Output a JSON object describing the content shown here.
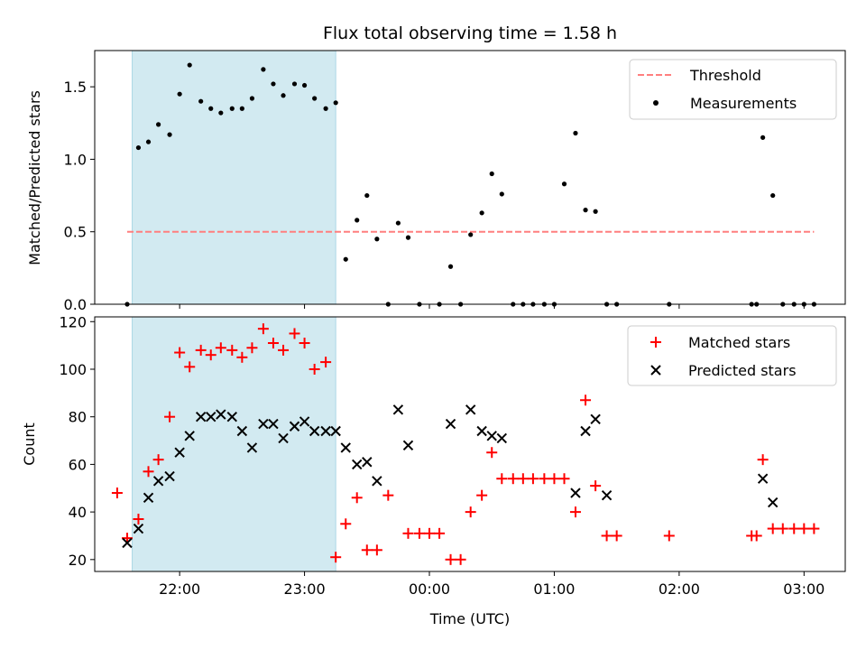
{
  "chart_data": {
    "title": "Flux total observing time = 1.58 h",
    "xlabel": "Time (UTC)",
    "x_ticks": [
      "22:00",
      "23:00",
      "00:00",
      "01:00",
      "02:00",
      "03:00"
    ],
    "x_tick_hours": [
      22,
      23,
      24,
      25,
      26,
      27
    ],
    "xlim_hours": [
      21.32,
      27.33
    ],
    "shaded_span_hours": [
      21.62,
      23.25
    ],
    "colors": {
      "shade": "#add8e6",
      "threshold": "#ff7f7f",
      "measurements": "#000000",
      "matched": "#ff0000",
      "predicted": "#000000"
    },
    "panels": [
      {
        "type": "scatter",
        "ylabel": "Matched/Predicted stars",
        "ylim": [
          0,
          1.75
        ],
        "y_ticks": [
          "0.0",
          "0.5",
          "1.0",
          "1.5"
        ],
        "y_tick_values": [
          0,
          0.5,
          1.0,
          1.5
        ],
        "legend": {
          "position": "upper right",
          "entries": [
            "Threshold",
            "Measurements"
          ]
        },
        "series": [
          {
            "name": "Threshold",
            "kind": "line",
            "style": "dashed",
            "x": [
              21.58,
              27.08
            ],
            "y": [
              0.5,
              0.5
            ]
          },
          {
            "name": "Measurements",
            "kind": "dots",
            "x": [
              21.58,
              21.67,
              21.75,
              21.83,
              21.92,
              22.0,
              22.08,
              22.17,
              22.25,
              22.33,
              22.42,
              22.5,
              22.58,
              22.67,
              22.75,
              22.83,
              22.92,
              23.0,
              23.08,
              23.17,
              23.25,
              23.33,
              23.42,
              23.5,
              23.58,
              23.67,
              23.75,
              23.83,
              23.92,
              24.08,
              24.17,
              24.25,
              24.33,
              24.42,
              24.5,
              24.58,
              24.67,
              24.75,
              24.83,
              24.92,
              25.0,
              25.08,
              25.17,
              25.25,
              25.33,
              25.42,
              25.5,
              25.92,
              26.58,
              26.62,
              26.67,
              26.75,
              26.83,
              26.92,
              27.0,
              27.08
            ],
            "y": [
              0.0,
              1.08,
              1.12,
              1.24,
              1.17,
              1.45,
              1.65,
              1.4,
              1.35,
              1.32,
              1.35,
              1.35,
              1.42,
              1.62,
              1.52,
              1.44,
              1.52,
              1.51,
              1.42,
              1.35,
              1.39,
              0.31,
              0.58,
              0.75,
              0.45,
              0.0,
              0.56,
              0.46,
              0.0,
              0.0,
              0.26,
              0.0,
              0.48,
              0.63,
              0.9,
              0.76,
              0.0,
              0.0,
              0.0,
              0.0,
              0.0,
              0.83,
              1.18,
              0.65,
              0.64,
              0.0,
              0.0,
              0.0,
              0.0,
              0.0,
              1.15,
              0.75,
              0.0,
              0.0,
              0.0,
              0.0
            ]
          }
        ]
      },
      {
        "type": "scatter",
        "ylabel": "Count",
        "ylim": [
          15,
          122
        ],
        "y_ticks": [
          "20",
          "40",
          "60",
          "80",
          "100",
          "120"
        ],
        "y_tick_values": [
          20,
          40,
          60,
          80,
          100,
          120
        ],
        "legend": {
          "position": "upper right",
          "entries": [
            "Matched stars",
            "Predicted stars"
          ]
        },
        "series": [
          {
            "name": "Matched stars",
            "kind": "plus",
            "x": [
              21.5,
              21.58,
              21.67,
              21.75,
              21.83,
              21.92,
              22.0,
              22.08,
              22.17,
              22.25,
              22.33,
              22.42,
              22.5,
              22.58,
              22.67,
              22.75,
              22.83,
              22.92,
              23.0,
              23.08,
              23.17,
              23.25,
              23.33,
              23.42,
              23.5,
              23.58,
              23.67,
              23.83,
              23.92,
              24.0,
              24.08,
              24.17,
              24.25,
              24.33,
              24.42,
              24.5,
              24.58,
              24.67,
              24.75,
              24.83,
              24.92,
              25.0,
              25.08,
              25.17,
              25.25,
              25.33,
              25.42,
              25.5,
              25.92,
              26.58,
              26.62,
              26.67,
              26.75,
              26.83,
              26.92,
              27.0,
              27.08
            ],
            "y": [
              48,
              29,
              37,
              57,
              62,
              80,
              107,
              101,
              108,
              106,
              109,
              108,
              105,
              109,
              117,
              111,
              108,
              115,
              111,
              100,
              103,
              21,
              35,
              46,
              24,
              24,
              47,
              31,
              31,
              31,
              31,
              20,
              20,
              40,
              47,
              65,
              54,
              54,
              54,
              54,
              54,
              54,
              54,
              40,
              87,
              51,
              30,
              30,
              30,
              30,
              30,
              62,
              33,
              33,
              33,
              33,
              33
            ]
          },
          {
            "name": "Predicted stars",
            "kind": "x",
            "x": [
              21.58,
              21.67,
              21.75,
              21.83,
              21.92,
              22.0,
              22.08,
              22.17,
              22.25,
              22.33,
              22.42,
              22.5,
              22.58,
              22.67,
              22.75,
              22.83,
              22.92,
              23.0,
              23.08,
              23.17,
              23.25,
              23.33,
              23.42,
              23.5,
              23.58,
              23.75,
              23.83,
              24.17,
              24.33,
              24.42,
              24.5,
              24.58,
              25.17,
              25.25,
              25.33,
              25.42,
              26.67,
              26.75
            ],
            "y": [
              27,
              33,
              46,
              53,
              55,
              65,
              72,
              80,
              80,
              81,
              80,
              74,
              67,
              77,
              77,
              71,
              76,
              78,
              74,
              74,
              74,
              67,
              60,
              61,
              53,
              83,
              68,
              77,
              83,
              74,
              72,
              71,
              48,
              74,
              79,
              47,
              54,
              44
            ]
          }
        ]
      }
    ]
  }
}
